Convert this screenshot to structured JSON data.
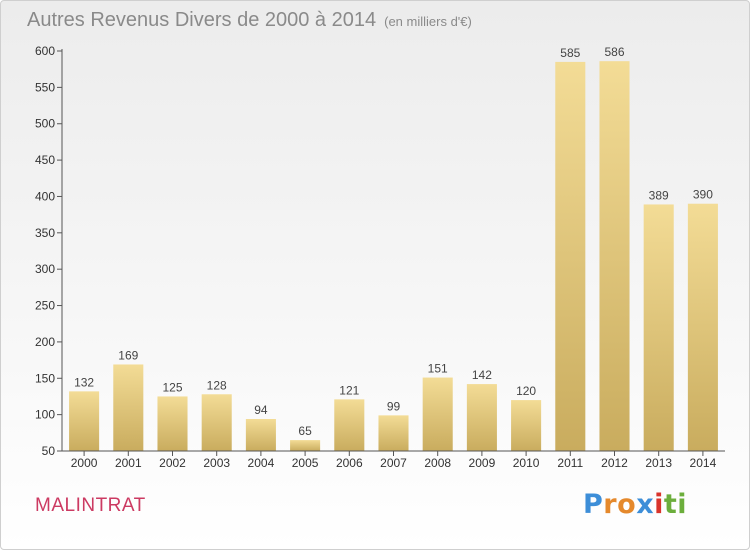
{
  "header": {
    "title": "Autres Revenus Divers de 2000 à 2014",
    "unit": "(en milliers d'€)"
  },
  "footer": {
    "commune": "MALINTRAT",
    "logo_parts": [
      "P",
      "r",
      "o",
      "x",
      "i",
      "t",
      "i"
    ]
  },
  "colors": {
    "bar_light": "#f3dc96",
    "bar_dark": "#c9ac5e",
    "commune": "#cc3a62"
  },
  "chart_data": {
    "type": "bar",
    "title": "Autres Revenus Divers de 2000 à 2014",
    "xlabel": "",
    "ylabel": "",
    "ylim": [
      50,
      600
    ],
    "yticks": [
      50,
      100,
      150,
      200,
      250,
      300,
      350,
      400,
      450,
      500,
      550,
      600
    ],
    "grid": false,
    "categories": [
      "2000",
      "2001",
      "2002",
      "2003",
      "2004",
      "2005",
      "2006",
      "2007",
      "2008",
      "2009",
      "2010",
      "2011",
      "2012",
      "2013",
      "2014"
    ],
    "values": [
      132,
      169,
      125,
      128,
      94,
      65,
      121,
      99,
      151,
      142,
      120,
      585,
      586,
      389,
      390
    ]
  }
}
